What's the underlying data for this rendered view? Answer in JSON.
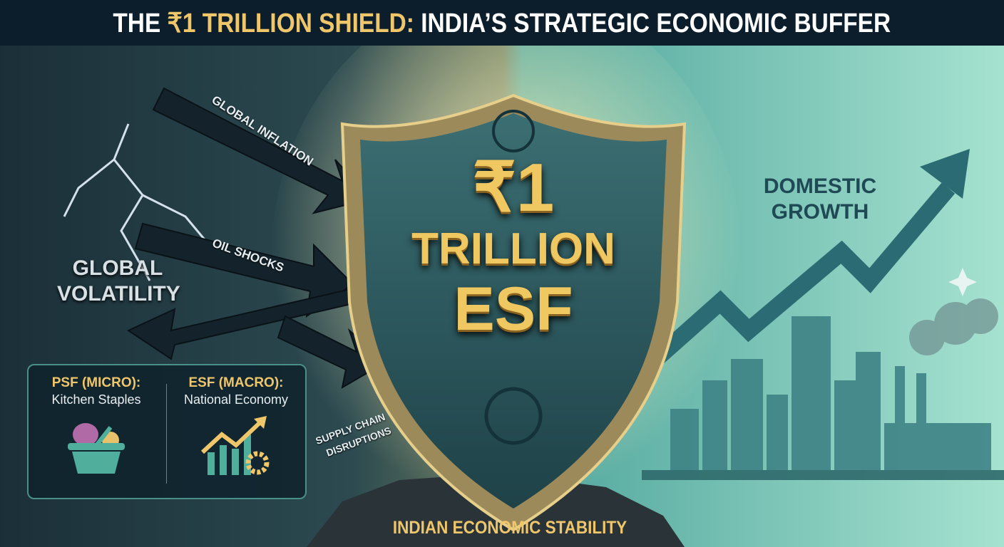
{
  "title": {
    "prefix": "THE ",
    "highlight": "₹1 TRILLION SHIELD:",
    "rest": " INDIA’S STRATEGIC ECONOMIC BUFFER"
  },
  "threats": [
    "GLOBAL INFLATION",
    "OIL SHOCKS",
    "SUPPLY CHAIN",
    "DISRUPTIONS"
  ],
  "left_label": [
    "GLOBAL",
    "VOLATILITY"
  ],
  "right_label": [
    "DOMESTIC",
    "GROWTH"
  ],
  "shield": {
    "line1": "₹1",
    "line2": "TRILLION",
    "line3": "ESF"
  },
  "info": {
    "psf_heading": "PSF (MICRO):",
    "psf_sub": "Kitchen Staples",
    "psf_icon": "basket-icon",
    "esf_heading": "ESF (MACRO):",
    "esf_sub": "National Economy",
    "esf_icon": "growth-chart-gear-icon"
  },
  "footer": "INDIAN ECONOMIC STABILITY",
  "colors": {
    "gold": "#efc66a",
    "navy": "#0c1e2c",
    "teal": "#3f8f8f",
    "light_teal": "#8fd6c8"
  }
}
